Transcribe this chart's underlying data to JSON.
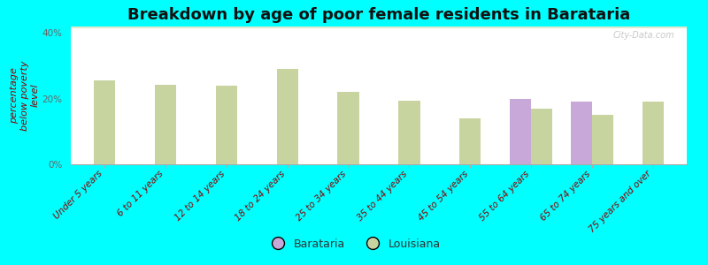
{
  "title": "Breakdown by age of poor female residents in Barataria",
  "ylabel": "percentage\nbelow poverty\nlevel",
  "background_color": "#00ffff",
  "plot_bg_top": "#f0f4e8",
  "plot_bg_bottom": "#dde8c8",
  "categories": [
    "Under 5 years",
    "6 to 11 years",
    "12 to 14 years",
    "18 to 24 years",
    "25 to 34 years",
    "35 to 44 years",
    "45 to 54 years",
    "55 to 64 years",
    "65 to 74 years",
    "75 years and over"
  ],
  "barataria_values": [
    null,
    null,
    null,
    null,
    null,
    null,
    null,
    19.8,
    19.0,
    null
  ],
  "louisiana_values": [
    25.5,
    24.2,
    24.0,
    29.0,
    22.0,
    19.3,
    14.0,
    17.0,
    15.2,
    19.0
  ],
  "barataria_color": "#c8a8d8",
  "louisiana_color": "#c8d4a0",
  "bar_width": 0.35,
  "ylim": [
    0,
    42
  ],
  "yticks": [
    0,
    20,
    40
  ],
  "ytick_labels": [
    "0%",
    "20%",
    "40%"
  ],
  "title_fontsize": 13,
  "axis_label_fontsize": 8,
  "tick_fontsize": 7.5,
  "legend_labels": [
    "Barataria",
    "Louisiana"
  ],
  "watermark": "City-Data.com"
}
